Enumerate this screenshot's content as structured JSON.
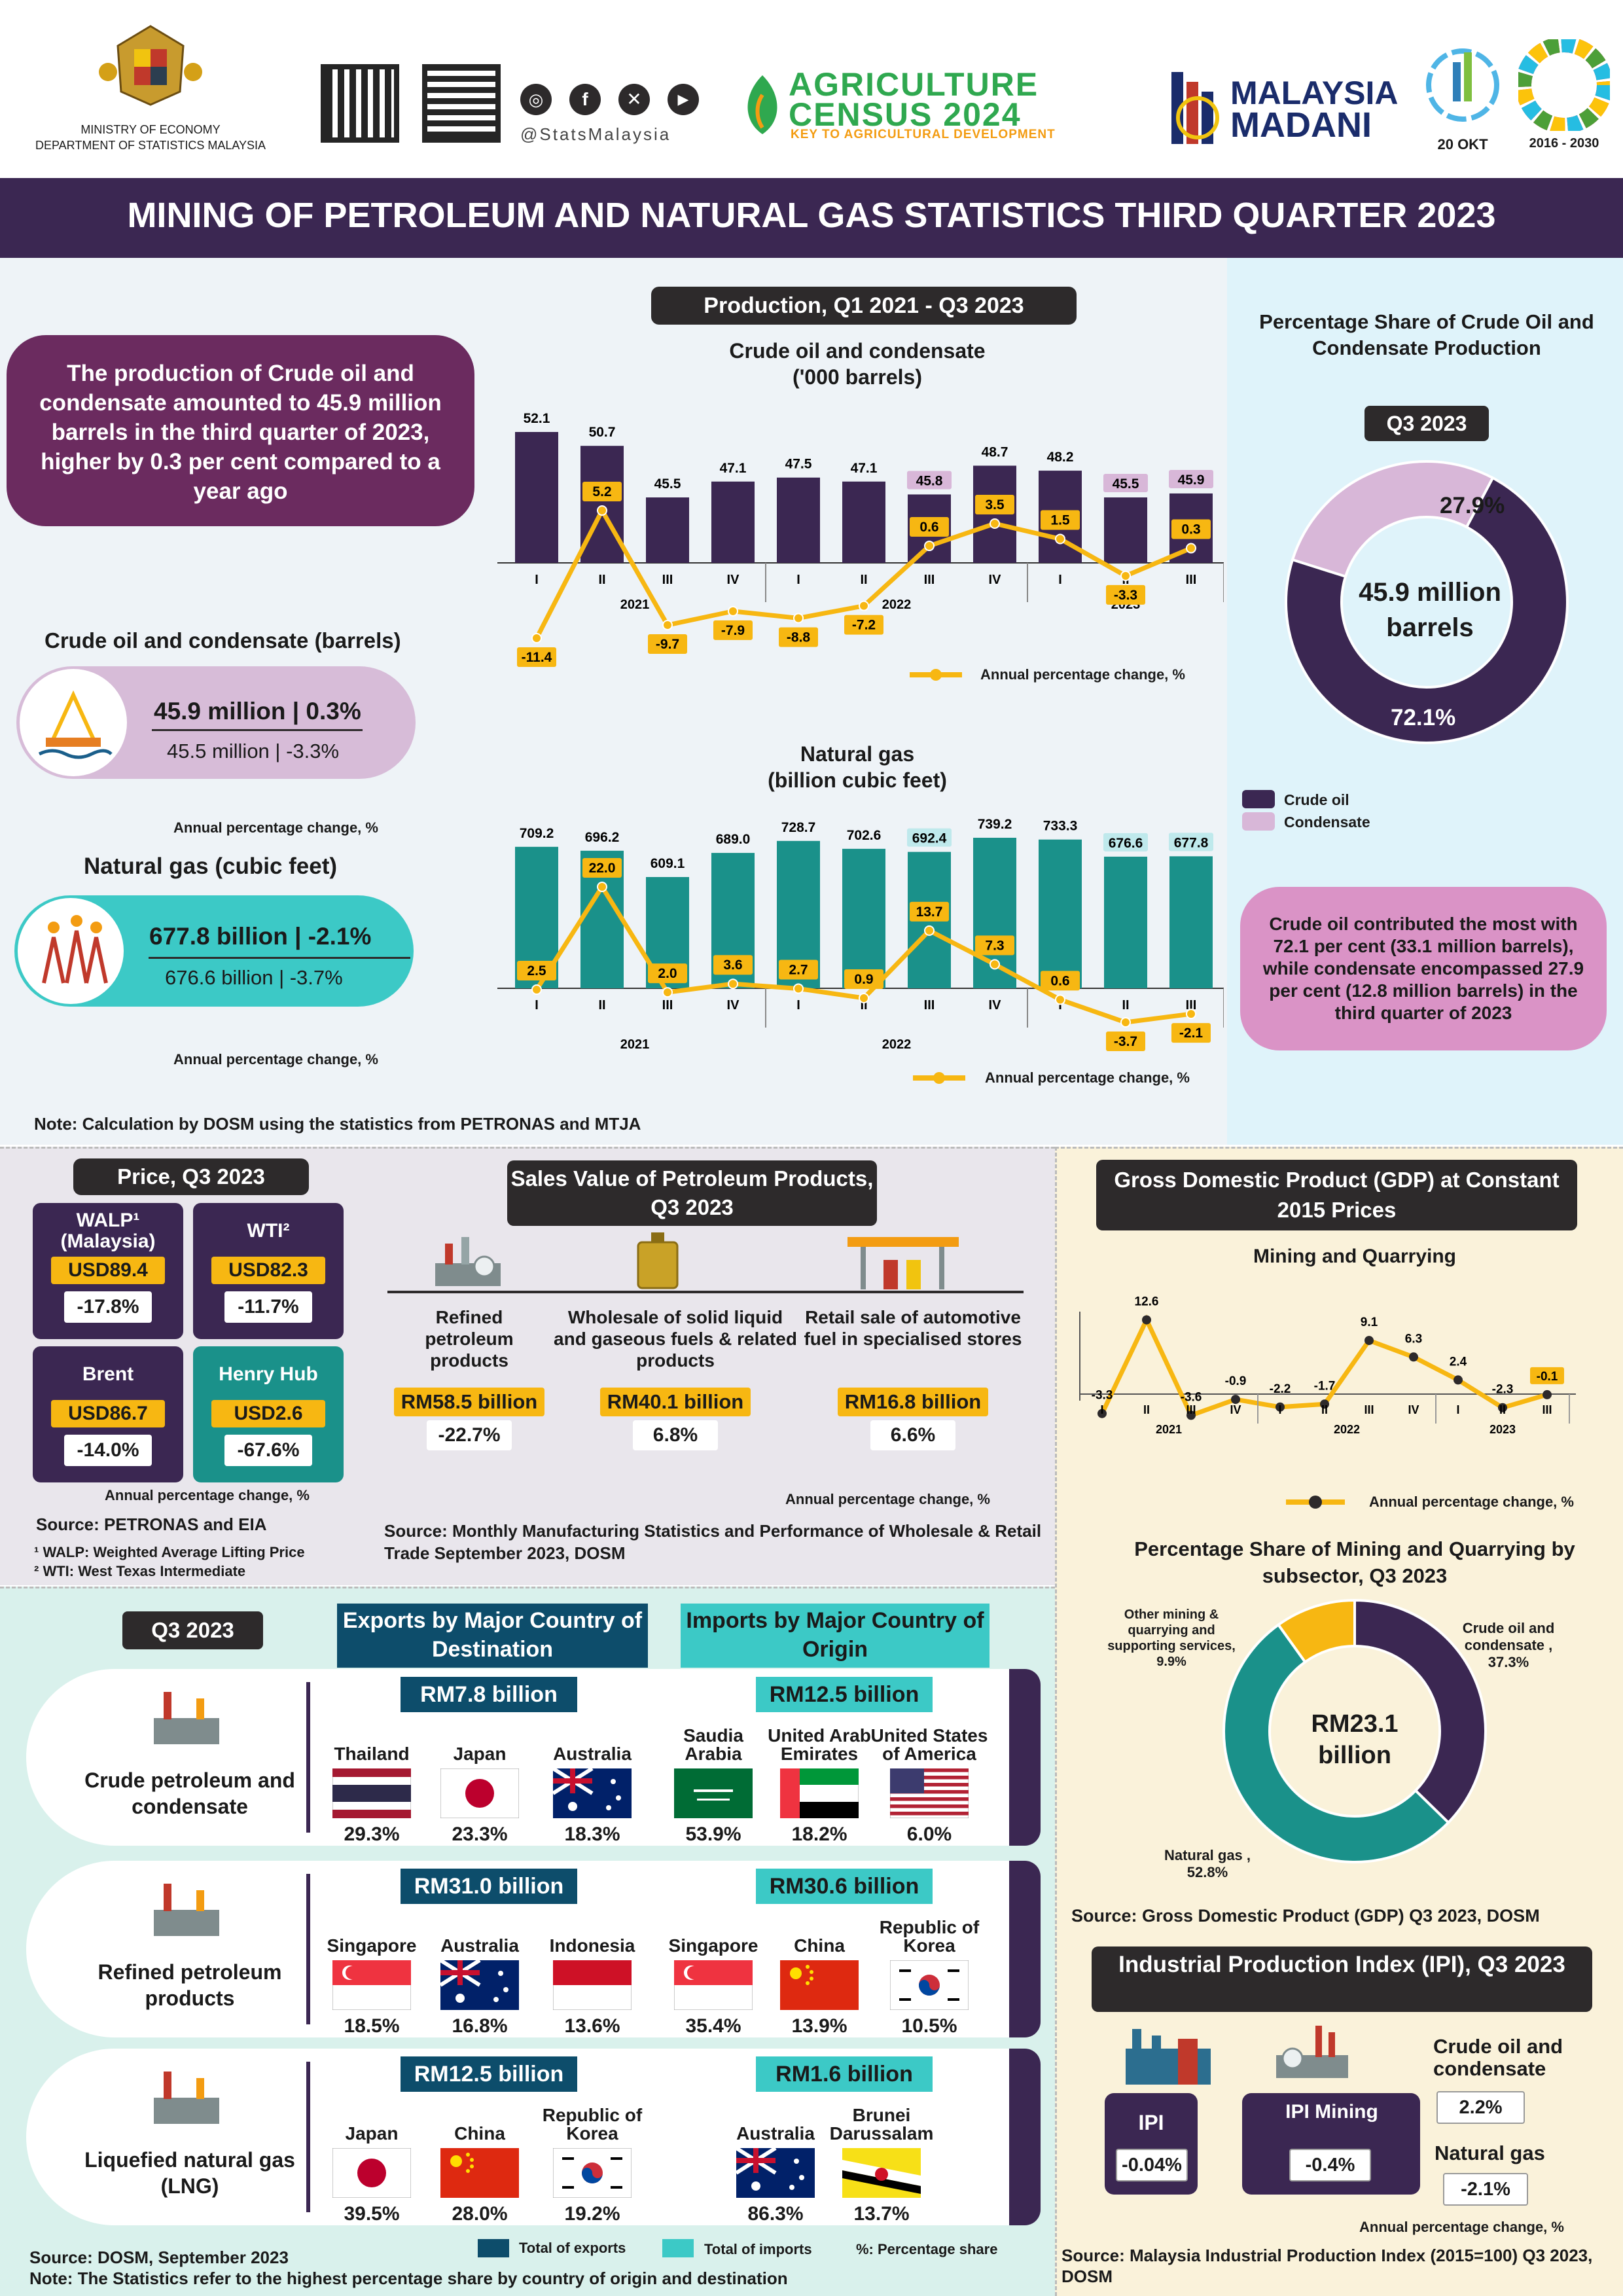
{
  "header": {
    "ministry": "MINISTRY OF ECONOMY",
    "department": "DEPARTMENT OF STATISTICS MALAYSIA",
    "social_handle": "@StatsMalaysia",
    "census_line1": "AGRICULTURE",
    "census_line2": "CENSUS 2024",
    "census_tagline": "KEY TO AGRICULTURAL DEVELOPMENT",
    "madani_line1": "MALAYSIA",
    "madani_line2": "MADANI",
    "stats_day": "20 OKT",
    "sdg_years": "2016 - 2030"
  },
  "title": "MINING OF PETROLEUM AND NATURAL GAS STATISTICS THIRD QUARTER 2023",
  "production": {
    "pill": "Production, Q1 2021 - Q3 2023",
    "summary": "The production of Crude oil and condensate amounted to 45.9 million barrels in the third quarter of 2023, higher by 0.3 per cent compared to a year ago",
    "crude_heading": "Crude oil and condensate (barrels)",
    "crude_main": "45.9 million | 0.3%",
    "crude_prev": "45.5 million  | -3.3%",
    "gas_heading": "Natural gas (cubic feet)",
    "gas_main": "677.8 billion | -2.1%",
    "gas_prev": "676.6 billion  | -3.7%",
    "apc_note": "Annual percentage change, %",
    "note": "Note: Calculation by DOSM using the statistics from PETRONAS and MTJA"
  },
  "chart_data": [
    {
      "type": "bar",
      "title": "Crude oil and condensate ('000 barrels)",
      "categories": [
        "I",
        "II",
        "III",
        "IV",
        "I",
        "II",
        "III",
        "IV",
        "I",
        "II",
        "III"
      ],
      "years": [
        "2021",
        "2022",
        "2023"
      ],
      "series": [
        {
          "name": "",
          "values": [
            52.1,
            50.7,
            45.5,
            47.1,
            47.5,
            47.1,
            45.8,
            48.7,
            48.2,
            45.5,
            45.9
          ]
        },
        {
          "name": "Annual percentage change, %",
          "values": [
            -11.4,
            5.2,
            -9.7,
            -7.9,
            -8.8,
            -7.2,
            0.6,
            3.5,
            1.5,
            -3.3,
            0.3
          ]
        }
      ]
    },
    {
      "type": "bar",
      "title": "Natural gas (billion cubic feet)",
      "categories": [
        "I",
        "II",
        "III",
        "IV",
        "I",
        "II",
        "III",
        "IV",
        "I",
        "II",
        "III"
      ],
      "years": [
        "2021",
        "2022",
        "2023"
      ],
      "series": [
        {
          "name": "",
          "values": [
            709.2,
            696.2,
            609.1,
            689.0,
            728.7,
            702.6,
            692.4,
            739.2,
            733.3,
            676.6,
            677.8
          ]
        },
        {
          "name": "Annual percentage change, %",
          "values": [
            2.5,
            22.0,
            2.0,
            3.6,
            2.7,
            0.9,
            13.7,
            7.3,
            0.6,
            -3.7,
            -2.1
          ]
        }
      ]
    },
    {
      "type": "pie",
      "title": "Percentage Share of Crude Oil and Condensate Production",
      "pill": "Q3 2023",
      "center_text": "45.9 million barrels",
      "labels": [
        "Crude oil",
        "Condensate"
      ],
      "values": [
        72.1,
        27.9
      ],
      "colors": [
        "#3b2752",
        "#d8b7d8"
      ]
    },
    {
      "type": "line",
      "title": "Mining and Quarrying",
      "categories": [
        "I",
        "II",
        "III",
        "IV",
        "I",
        "II",
        "III",
        "IV",
        "I",
        "II",
        "III"
      ],
      "years": [
        "2021",
        "2022",
        "2023"
      ],
      "series": [
        {
          "name": "Annual percentage change, %",
          "values": [
            -3.3,
            12.6,
            -3.6,
            -0.9,
            -2.2,
            -1.7,
            9.1,
            6.3,
            2.4,
            -2.3,
            -0.1
          ]
        }
      ]
    },
    {
      "type": "pie",
      "title": "Percentage Share of Mining and Quarrying by subsector, Q3 2023",
      "center_text": "RM23.1 billion",
      "labels": [
        "Crude oil and condensate",
        "Natural gas",
        "Other mining & quarrying and supporting services"
      ],
      "values": [
        37.3,
        52.8,
        9.9
      ],
      "colors": [
        "#3b2752",
        "#1a918a",
        "#f7b712"
      ]
    }
  ],
  "labels": {
    "crude_chart_title1": "Crude oil and condensate",
    "crude_chart_title2": "('000 barrels)",
    "gas_chart_title1": "Natural gas",
    "gas_chart_title2": "(billion cubic feet)",
    "legend_apc": "Annual percentage change, %",
    "share_title": "Percentage Share of Crude Oil and Condensate Production",
    "share_pill": "Q3 2023",
    "share_center": "45.9 million barrels",
    "share_crude_pct": "72.1%",
    "share_cond_pct": "27.9%",
    "legend_crude": "Crude oil",
    "legend_cond": "Condensate",
    "share_note": "Crude oil contributed the most with 72.1 per cent (33.1 million barrels), while condensate encompassed 27.9 per cent (12.8 million barrels) in the third quarter of 2023"
  },
  "price": {
    "title": "Price, Q3 2023",
    "items": [
      {
        "name": "WALP¹ (Malaysia)",
        "price": "USD89.4",
        "change": "-17.8%"
      },
      {
        "name": "WTI²",
        "price": "USD82.3",
        "change": "-11.7%"
      },
      {
        "name": "Brent",
        "price": "USD86.7",
        "change": "-14.0%"
      },
      {
        "name": "Henry Hub",
        "price": "USD2.6",
        "change": "-67.6%"
      }
    ],
    "apc": "Annual percentage change, %",
    "source": "Source: PETRONAS and EIA",
    "fn1": "¹ WALP: Weighted Average Lifting Price",
    "fn2": "² WTI: West Texas Intermediate"
  },
  "sales": {
    "title": "Sales Value of Petroleum Products, Q3 2023",
    "items": [
      {
        "name": "Refined petroleum products",
        "value": "RM58.5 billion",
        "change": "-22.7%"
      },
      {
        "name": "Wholesale of solid liquid and gaseous fuels & related products",
        "value": "RM40.1 billion",
        "change": "6.8%"
      },
      {
        "name": "Retail sale of automotive fuel in specialised stores",
        "value": "RM16.8 billion",
        "change": "6.6%"
      }
    ],
    "apc": "Annual percentage change, %",
    "source": "Source: Monthly Manufacturing Statistics and Performance of Wholesale & Retail Trade September 2023, DOSM"
  },
  "gdp": {
    "title": "Gross Domestic Product (GDP) at Constant 2015 Prices",
    "subtitle": "Mining and Quarrying",
    "legend": "Annual percentage change, %",
    "share_title": "Percentage Share of Mining and Quarrying by subsector, Q3 2023",
    "center": "RM23.1 billion",
    "lbl_crude": "Crude oil and condensate , 37.3%",
    "lbl_gas": "Natural gas , 52.8%",
    "lbl_other": "Other mining & quarrying and supporting services, 9.9%",
    "source": "Source: Gross Domestic Product (GDP) Q3 2023, DOSM"
  },
  "ipi": {
    "title": "Industrial Production Index (IPI), Q3 2023",
    "ipi_label": "IPI",
    "ipi_value": "-0.04%",
    "mining_label": "IPI Mining",
    "mining_value": "-0.4%",
    "crude_label": "Crude oil and condensate",
    "crude_value": "2.2%",
    "gas_label": "Natural gas",
    "gas_value": "-2.1%",
    "apc": "Annual percentage change, %",
    "source": "Source: Malaysia Industrial Production Index (2015=100) Q3 2023, DOSM"
  },
  "trade": {
    "pill": "Q3 2023",
    "exports_title": "Exports by Major Country of Destination",
    "imports_title": "Imports by Major Country of Origin",
    "rows": [
      {
        "product": "Crude petroleum and condensate",
        "exp_total": "RM7.8 billion",
        "imp_total": "RM12.5 billion",
        "exports": [
          {
            "country": "Thailand",
            "pct": "29.3%",
            "flag": "th"
          },
          {
            "country": "Japan",
            "pct": "23.3%",
            "flag": "jp"
          },
          {
            "country": "Australia",
            "pct": "18.3%",
            "flag": "au"
          }
        ],
        "imports": [
          {
            "country": "Saudia Arabia",
            "pct": "53.9%",
            "flag": "sa"
          },
          {
            "country": "United Arab Emirates",
            "pct": "18.2%",
            "flag": "ae"
          },
          {
            "country": "United States of America",
            "pct": "6.0%",
            "flag": "us"
          }
        ]
      },
      {
        "product": "Refined petroleum products",
        "exp_total": "RM31.0 billion",
        "imp_total": "RM30.6 billion",
        "exports": [
          {
            "country": "Singapore",
            "pct": "18.5%",
            "flag": "sg"
          },
          {
            "country": "Australia",
            "pct": "16.8%",
            "flag": "au"
          },
          {
            "country": "Indonesia",
            "pct": "13.6%",
            "flag": "id"
          }
        ],
        "imports": [
          {
            "country": "Singapore",
            "pct": "35.4%",
            "flag": "sg"
          },
          {
            "country": "China",
            "pct": "13.9%",
            "flag": "cn"
          },
          {
            "country": "Republic of Korea",
            "pct": "10.5%",
            "flag": "kr"
          }
        ]
      },
      {
        "product": "Liquefied natural gas (LNG)",
        "exp_total": "RM12.5 billion",
        "imp_total": "RM1.6 billion",
        "exports": [
          {
            "country": "Japan",
            "pct": "39.5%",
            "flag": "jp"
          },
          {
            "country": "China",
            "pct": "28.0%",
            "flag": "cn"
          },
          {
            "country": "Republic of Korea",
            "pct": "19.2%",
            "flag": "kr"
          }
        ],
        "imports": [
          {
            "country": "Australia",
            "pct": "86.3%",
            "flag": "au"
          },
          {
            "country": "Brunei Darussalam",
            "pct": "13.7%",
            "flag": "bn"
          }
        ]
      }
    ],
    "legend_exports": "Total of exports",
    "legend_imports": "Total of imports",
    "legend_pct": "%: Percentage share",
    "source": "Source: DOSM, September 2023",
    "note": "Note: The Statistics refer to the highest percentage share by country of origin and destination"
  },
  "colors": {
    "purple": "#3b2752",
    "teal": "#1a918a",
    "yellow": "#f7b712",
    "navy": "#0d4d6b",
    "lightteal": "#3cc9c6",
    "mauve": "#6b2b5f"
  }
}
